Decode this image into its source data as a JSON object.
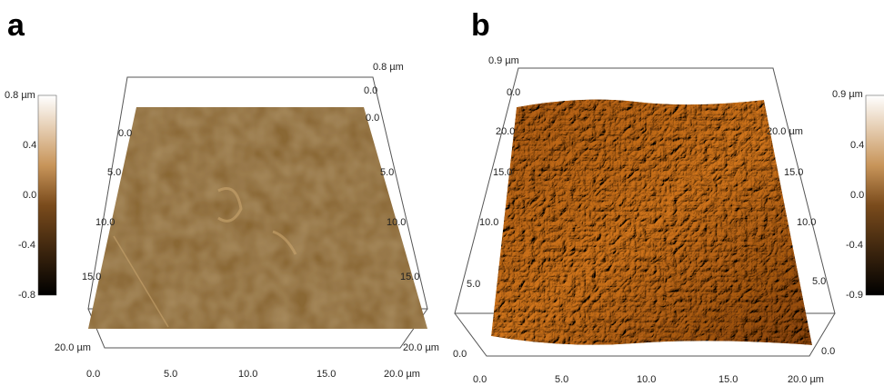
{
  "panels": [
    {
      "label": "a",
      "colorbar": [
        "0.8 µm",
        "0.4",
        "0.0",
        "-0.4",
        "-0.8"
      ],
      "z_axis": [
        "0.8 µm",
        "0.0"
      ],
      "left_axis": [
        "0.0",
        "5.0",
        "10.0",
        "15.0",
        "20.0 µm"
      ],
      "right_axis": [
        "0.0",
        "5.0",
        "10.0",
        "15.0",
        "20.0 µm"
      ],
      "bottom_axis": [
        "0.0",
        "5.0",
        "10.0",
        "15.0",
        "20.0 µm"
      ]
    },
    {
      "label": "b",
      "colorbar": [
        "0.9 µm",
        "0.4",
        "0.0",
        "-0.4",
        "-0.9"
      ],
      "z_axis": [
        "0.9 µm",
        "0.0"
      ],
      "left_axis": [
        "20.0",
        "15.0",
        "10.0",
        "5.0",
        "0.0"
      ],
      "right_axis": [
        "20.0 µm",
        "15.0",
        "10.0",
        "5.0",
        "0.0"
      ],
      "bottom_axis": [
        "0.0",
        "5.0",
        "10.0",
        "15.0",
        "20.0 µm"
      ]
    }
  ]
}
